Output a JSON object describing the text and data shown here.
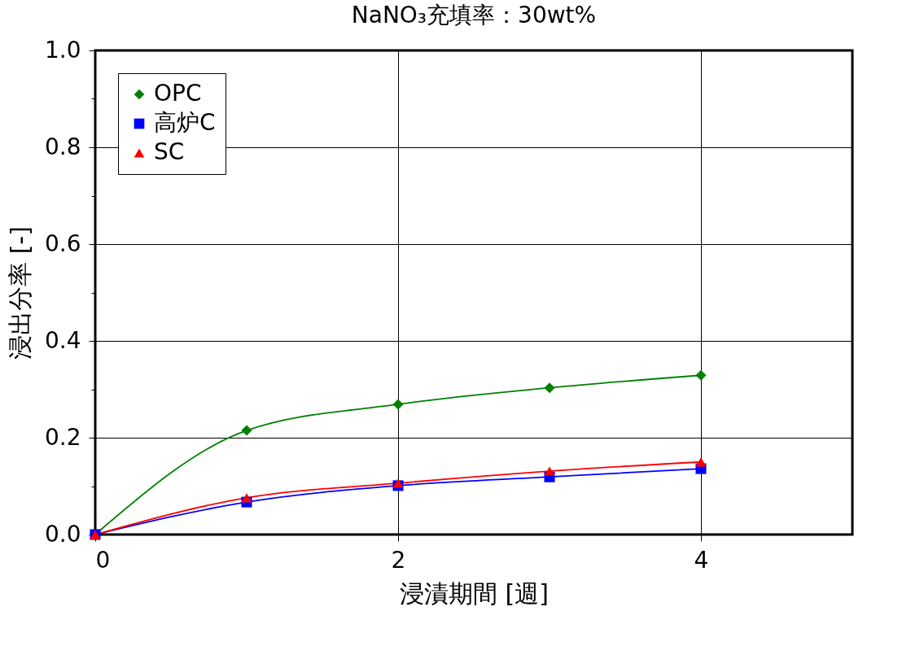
{
  "chart_data": {
    "type": "line",
    "title": "NaNO₃充填率：30wt%",
    "xlabel": "浸漬期間 [週]",
    "ylabel": "浸出分率 [-]",
    "x": [
      0,
      1,
      2,
      3,
      4
    ],
    "series": [
      {
        "name": "OPC",
        "color": "#008000",
        "marker": "diamond",
        "values": [
          0,
          0.215,
          0.269,
          0.303,
          0.329
        ]
      },
      {
        "name": "高炉C",
        "color": "#0000ff",
        "marker": "square",
        "values": [
          0,
          0.067,
          0.101,
          0.119,
          0.136
        ]
      },
      {
        "name": "SC",
        "color": "#ff0000",
        "marker": "triangle",
        "values": [
          0,
          0.076,
          0.106,
          0.131,
          0.15
        ]
      }
    ],
    "xlim": [
      0,
      5
    ],
    "xticks": [
      0,
      2,
      4
    ],
    "ylim": [
      0,
      1
    ],
    "yticks": [
      {
        "value": 0,
        "label": "0.0"
      },
      {
        "value": 0.1,
        "label": null
      },
      0.2,
      {
        "value": 0.3,
        "label": null
      },
      0.4,
      {
        "value": 0.5,
        "label": null
      },
      0.6,
      {
        "value": 0.7,
        "label": null
      },
      0.8,
      {
        "value": 0.9,
        "label": null
      },
      {
        "value": 1,
        "label": "1.0"
      }
    ],
    "grid": true,
    "legend": "top left",
    "line_style": "solid"
  }
}
